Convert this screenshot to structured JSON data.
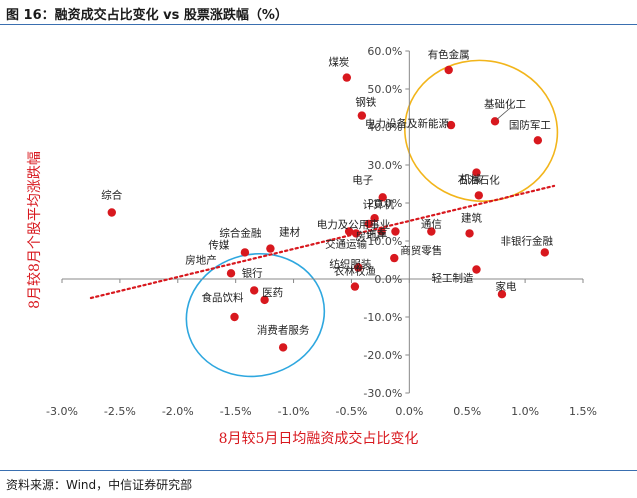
{
  "figure": {
    "title": "图 16：融资成交占比变化 vs 股票涨跌幅（%）",
    "source": "资料来源：Wind，中信证券研究部"
  },
  "chart_data": {
    "type": "scatter",
    "title": "融资成交占比变化 vs 股票涨跌幅（%）",
    "xlabel": "8月较5月日均融资成交占比变化",
    "ylabel": "8月较8月个股平均涨跌幅",
    "xlim": [
      -3.0,
      1.5
    ],
    "ylim": [
      -30.0,
      60.0
    ],
    "x_ticks": [
      -3.0,
      -2.5,
      -2.0,
      -1.5,
      -1.0,
      -0.5,
      0.0,
      0.5,
      1.0,
      1.5
    ],
    "x_tick_labels": [
      "-3.0%",
      "-2.5%",
      "-2.0%",
      "-1.5%",
      "-1.0%",
      "-0.5%",
      "0.0%",
      "0.5%",
      "1.0%",
      "1.5%"
    ],
    "y_ticks": [
      -30,
      -20,
      -10,
      0,
      10,
      20,
      30,
      40,
      50,
      60
    ],
    "y_tick_labels": [
      "-30.0%",
      "-20.0%",
      "-10.0%",
      "0.0%",
      "10.0%",
      "20.0%",
      "30.0%",
      "40.0%",
      "50.0%",
      "60.0%"
    ],
    "axis_position": "crosses at origin",
    "grid": false,
    "legend": "none",
    "trendline": "linear, dotted",
    "point_color": "#d8181e",
    "trend_color": "#d8181e",
    "highlight_groups": [
      {
        "color": "#f2b51b",
        "shape": "ellipse",
        "around": "upper-right points"
      },
      {
        "color": "#2ea7df",
        "shape": "ellipse",
        "around": "lower-left points"
      }
    ],
    "points": [
      {
        "label": "有色金属",
        "x": 0.34,
        "y": 55.0
      },
      {
        "label": "煤炭",
        "x": -0.54,
        "y": 53.0
      },
      {
        "label": "钢铁",
        "x": -0.41,
        "y": 43.0
      },
      {
        "label": "电力设备及新能源",
        "x": 0.36,
        "y": 40.5
      },
      {
        "label": "基础化工",
        "x": 0.74,
        "y": 41.5
      },
      {
        "label": "国防军工",
        "x": 1.11,
        "y": 36.5
      },
      {
        "label": "机械",
        "x": 0.58,
        "y": 28.0
      },
      {
        "label": "石油石化",
        "x": 0.6,
        "y": 22.0
      },
      {
        "label": "综合",
        "x": -2.57,
        "y": 17.5
      },
      {
        "label": "电子",
        "x": -0.23,
        "y": 21.5
      },
      {
        "label": "计算机",
        "x": -0.3,
        "y": 16.0
      },
      {
        "label": "建材",
        "x": -0.52,
        "y": 12.5
      },
      {
        "label": "电力及公用事业",
        "x": -0.35,
        "y": 14.5
      },
      {
        "label": "交通运输",
        "x": -0.46,
        "y": 12.0
      },
      {
        "label": "汽车",
        "x": -0.24,
        "y": 12.5
      },
      {
        "label": "房地产",
        "x": -0.12,
        "y": 12.5
      },
      {
        "label": "通信",
        "x": 0.19,
        "y": 12.5
      },
      {
        "label": "建筑",
        "x": 0.52,
        "y": 12.0
      },
      {
        "label": "传媒",
        "x": -1.42,
        "y": 7.0
      },
      {
        "label": "综合金融",
        "x": -1.2,
        "y": 8.0
      },
      {
        "label": "非银行金融",
        "x": 1.17,
        "y": 7.0
      },
      {
        "label": "纺织服装",
        "x": -0.44,
        "y": 3.0
      },
      {
        "label": "商贸零售",
        "x": -0.13,
        "y": 5.5
      },
      {
        "label": "轻工制造",
        "x": 0.58,
        "y": 2.5
      },
      {
        "label": "房地产",
        "x": -1.54,
        "y": 1.5
      },
      {
        "label": "银行",
        "x": -1.34,
        "y": -3.0
      },
      {
        "label": "医药",
        "x": -1.25,
        "y": -5.5
      },
      {
        "label": "食品饮料",
        "x": -1.51,
        "y": -10.0
      },
      {
        "label": "农林牧渔",
        "x": -0.47,
        "y": -2.0
      },
      {
        "label": "家电",
        "x": 0.8,
        "y": -4.0
      },
      {
        "label": "消费者服务",
        "x": -1.09,
        "y": -18.0
      }
    ],
    "trend": {
      "x": [
        -2.75,
        1.25
      ],
      "y": [
        -5.0,
        24.5
      ]
    }
  }
}
